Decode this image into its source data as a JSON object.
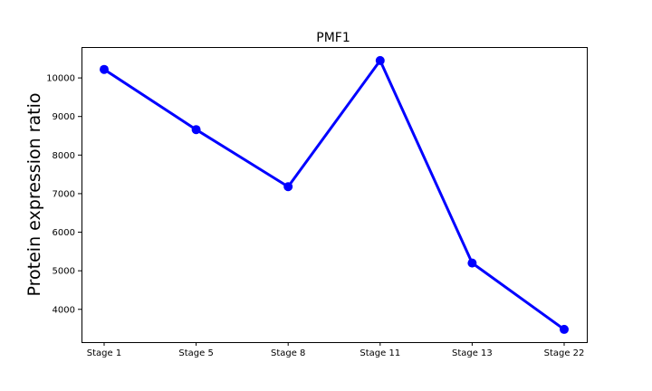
{
  "chart_data": {
    "type": "line",
    "title": "PMF1",
    "xlabel": "",
    "ylabel": "Protein expression ratio",
    "categories": [
      "Stage 1",
      "Stage 5",
      "Stage 8",
      "Stage 11",
      "Stage 13",
      "Stage 22"
    ],
    "series": [
      {
        "values": [
          10220,
          8660,
          7180,
          10450,
          5200,
          3480
        ],
        "color": "#0000ff",
        "marker": "circle"
      }
    ],
    "yticks": [
      4000,
      5000,
      6000,
      7000,
      8000,
      9000,
      10000
    ],
    "ylim": [
      3150,
      10800
    ],
    "grid": false,
    "legend": "none"
  }
}
